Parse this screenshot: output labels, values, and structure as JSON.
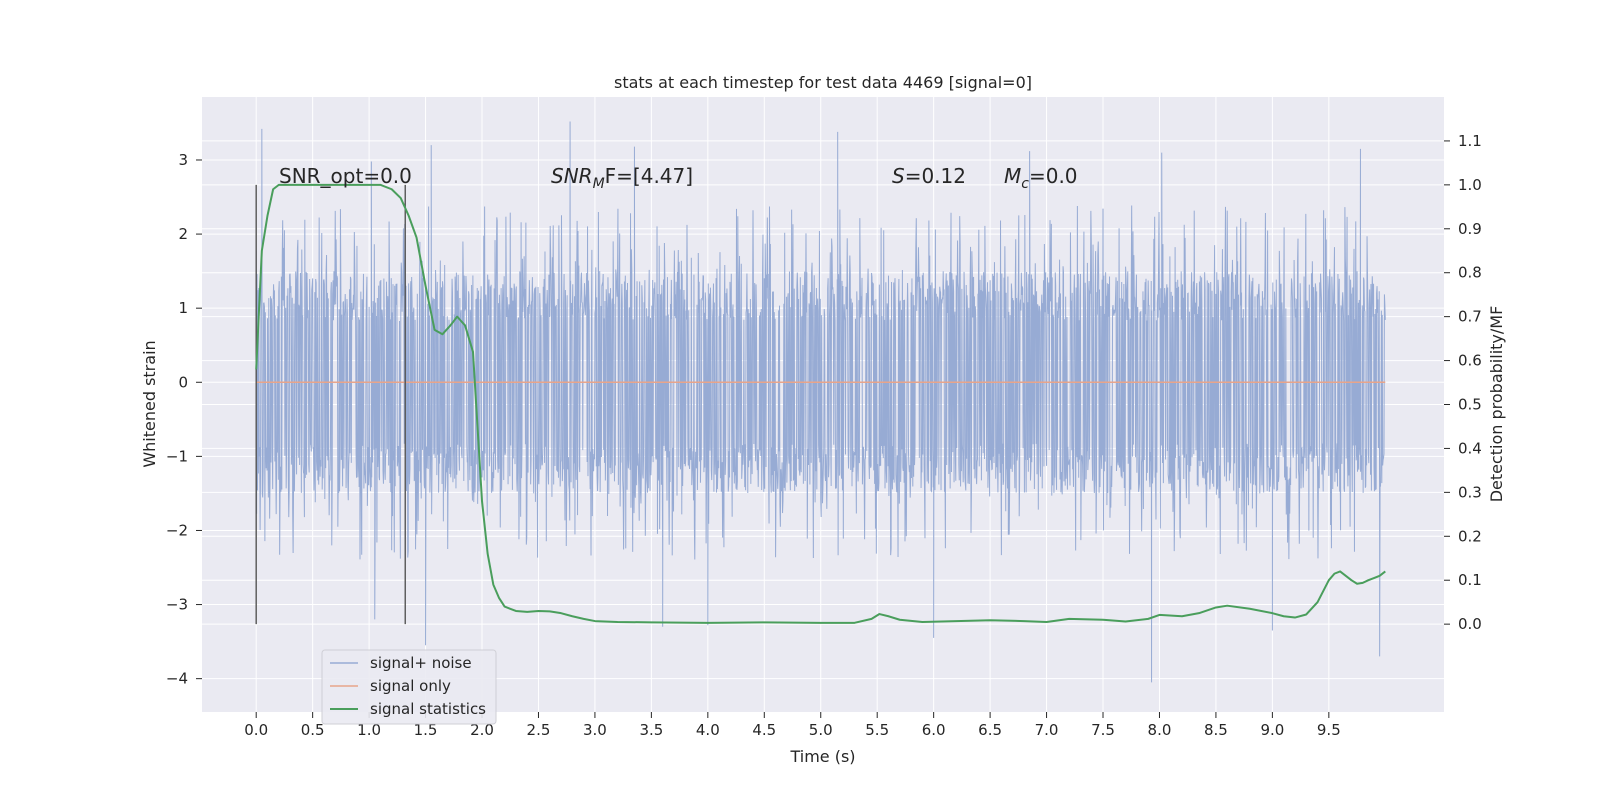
{
  "chart_data": {
    "type": "line",
    "title": "stats at each timestep for test data 4469 [signal=0]",
    "xlabel": "Time (s)",
    "ylabel": "Whitened strain",
    "ylabel_right": "Detection probability/MF",
    "xlim": [
      -0.48,
      10.52
    ],
    "ylim": [
      -4.45,
      3.85
    ],
    "ylim_right": [
      -0.2,
      1.2
    ],
    "x_ticks": [
      "0.0",
      "0.5",
      "1.0",
      "1.5",
      "2.0",
      "2.5",
      "3.0",
      "3.5",
      "4.0",
      "4.5",
      "5.0",
      "5.5",
      "6.0",
      "6.5",
      "7.0",
      "7.5",
      "8.0",
      "8.5",
      "9.0",
      "9.5"
    ],
    "y_ticks": [
      "3",
      "2",
      "1",
      "0",
      "−1",
      "−2",
      "−3",
      "−4"
    ],
    "y_right_ticks": [
      "1.1",
      "1.0",
      "0.9",
      "0.8",
      "0.7",
      "0.6",
      "0.5",
      "0.4",
      "0.3",
      "0.2",
      "0.1",
      "0.0"
    ],
    "grid": true,
    "legend_position": "lower-left",
    "annotations": {
      "snr_opt": "SNR_opt=0.0",
      "snr_mf_base": "SNR",
      "snr_mf_sub": "M",
      "snr_mf_rest": "F=[4.47]",
      "s_var": "S",
      "s_val": "=0.12",
      "mc_var": "M",
      "mc_sub": "c",
      "mc_val": "=0.0"
    },
    "markers_x": [
      0.0,
      1.32
    ],
    "series": [
      {
        "name": "signal+ noise",
        "axis": "left",
        "color": "#97abd4",
        "x_range": [
          0.0,
          10.0
        ],
        "envelope": {
          "core_low": -1.5,
          "core_high": 1.5,
          "peaks_high": [
            [
              0.05,
              3.42
            ],
            [
              1.02,
              2.98
            ],
            [
              1.55,
              3.2
            ],
            [
              2.78,
              3.52
            ],
            [
              3.35,
              3.18
            ],
            [
              5.15,
              3.38
            ],
            [
              6.85,
              3.12
            ],
            [
              8.02,
              3.1
            ],
            [
              9.78,
              3.15
            ]
          ],
          "peaks_low": [
            [
              1.5,
              -3.55
            ],
            [
              1.05,
              -3.2
            ],
            [
              3.6,
              -3.3
            ],
            [
              4.0,
              -3.28
            ],
            [
              6.0,
              -3.45
            ],
            [
              7.93,
              -4.05
            ],
            [
              9.0,
              -3.35
            ],
            [
              9.95,
              -3.7
            ]
          ]
        }
      },
      {
        "name": "signal only",
        "axis": "left",
        "color": "#e8a48a",
        "x": [
          0.0,
          10.0
        ],
        "y": [
          0.0,
          0.0
        ]
      },
      {
        "name": "signal statistics",
        "axis": "right",
        "color": "#4a9e5c",
        "x": [
          0.0,
          0.05,
          0.1,
          0.15,
          0.2,
          0.3,
          0.4,
          0.5,
          0.6,
          0.7,
          0.8,
          0.9,
          1.0,
          1.1,
          1.2,
          1.28,
          1.35,
          1.42,
          1.5,
          1.58,
          1.65,
          1.72,
          1.78,
          1.85,
          1.92,
          2.0,
          2.05,
          2.1,
          2.15,
          2.2,
          2.25,
          2.3,
          2.4,
          2.5,
          2.6,
          2.7,
          2.8,
          2.9,
          3.0,
          3.2,
          3.5,
          4.0,
          4.5,
          5.0,
          5.3,
          5.45,
          5.52,
          5.6,
          5.7,
          5.9,
          6.2,
          6.5,
          6.8,
          7.0,
          7.2,
          7.5,
          7.7,
          7.9,
          8.0,
          8.2,
          8.35,
          8.5,
          8.6,
          8.8,
          9.0,
          9.1,
          9.2,
          9.3,
          9.4,
          9.5,
          9.55,
          9.6,
          9.65,
          9.7,
          9.75,
          9.8,
          9.85,
          9.9,
          9.95,
          10.0
        ],
        "y": [
          0.58,
          0.85,
          0.93,
          0.99,
          1.0,
          1.0,
          1.0,
          1.0,
          1.0,
          1.0,
          1.0,
          1.0,
          1.0,
          1.0,
          0.99,
          0.97,
          0.93,
          0.88,
          0.77,
          0.67,
          0.66,
          0.68,
          0.7,
          0.68,
          0.62,
          0.28,
          0.16,
          0.09,
          0.06,
          0.04,
          0.035,
          0.03,
          0.028,
          0.03,
          0.029,
          0.025,
          0.018,
          0.012,
          0.007,
          0.005,
          0.004,
          0.003,
          0.004,
          0.003,
          0.003,
          0.012,
          0.023,
          0.018,
          0.01,
          0.005,
          0.007,
          0.009,
          0.007,
          0.005,
          0.012,
          0.01,
          0.006,
          0.012,
          0.021,
          0.018,
          0.025,
          0.038,
          0.042,
          0.035,
          0.025,
          0.018,
          0.015,
          0.022,
          0.05,
          0.1,
          0.115,
          0.12,
          0.11,
          0.1,
          0.092,
          0.094,
          0.1,
          0.105,
          0.11,
          0.12
        ]
      }
    ]
  }
}
